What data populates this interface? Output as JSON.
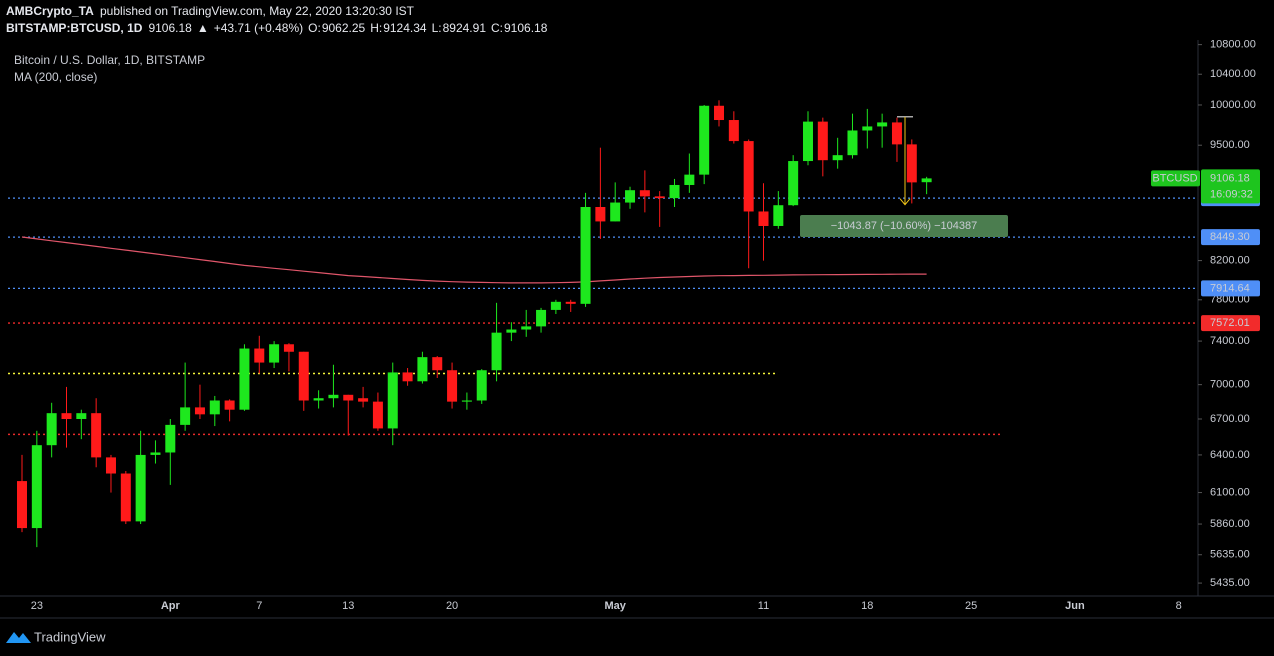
{
  "header": {
    "author": "AMBCrypto_TA",
    "published": "published on TradingView.com, May 22, 2020 13:20:30 IST",
    "symbol": "BITSTAMP:BTCUSD, 1D",
    "last": "9106.18",
    "arrow": "▲",
    "change": "+43.71 (+0.48%)",
    "ohlc": [
      {
        "label": "O:",
        "value": "9062.25"
      },
      {
        "label": "H:",
        "value": "9124.34"
      },
      {
        "label": "L:",
        "value": "8924.91"
      },
      {
        "label": "C:",
        "value": "9106.18"
      }
    ]
  },
  "footer": "TradingView",
  "chart_data": {
    "type": "candlestick",
    "title": "Bitcoin / U.S. Dollar, 1D, BITSTAMP",
    "log_scale": true,
    "grid": false,
    "up_color": "#1ee81e",
    "down_color": "#ff1a1a",
    "ylim": [
      5353,
      10864
    ],
    "yticks": [
      {
        "value": 10800,
        "label": "10800.00"
      },
      {
        "value": 10400,
        "label": "10400.00"
      },
      {
        "value": 10000,
        "label": "10000.00"
      },
      {
        "value": 9500,
        "label": "9500.00"
      },
      {
        "value": 8200,
        "label": "8200.00"
      },
      {
        "value": 7800,
        "label": "7800.00"
      },
      {
        "value": 7400,
        "label": "7400.00"
      },
      {
        "value": 7000,
        "label": "7000.00"
      },
      {
        "value": 6700,
        "label": "6700.00"
      },
      {
        "value": 6400,
        "label": "6400.00"
      },
      {
        "value": 6100,
        "label": "6100.00"
      },
      {
        "value": 5860,
        "label": "5860.00"
      },
      {
        "value": 5635,
        "label": "5635.00"
      },
      {
        "value": 5435,
        "label": "5435.00"
      }
    ],
    "categories": [
      null,
      "23",
      null,
      null,
      null,
      null,
      null,
      null,
      null,
      null,
      "Apr",
      null,
      null,
      null,
      null,
      null,
      "7",
      null,
      null,
      null,
      null,
      null,
      "13",
      null,
      null,
      null,
      null,
      null,
      null,
      "20",
      null,
      null,
      null,
      null,
      null,
      null,
      null,
      null,
      null,
      null,
      "May",
      null,
      null,
      null,
      null,
      null,
      null,
      null,
      null,
      null,
      "11",
      null,
      null,
      null,
      null,
      null,
      null,
      "18",
      null,
      null,
      null,
      null,
      null,
      null,
      "25",
      null,
      null,
      null,
      null,
      null,
      null,
      "Jun",
      null,
      null,
      null,
      null,
      null,
      null,
      "8",
      null
    ],
    "open": [
      6190,
      5830,
      6480,
      6750,
      6700,
      6750,
      6380,
      6250,
      5880,
      6400,
      6420,
      6650,
      6800,
      6740,
      6860,
      6780,
      7330,
      7200,
      7370,
      7300,
      6860,
      6880,
      6910,
      6880,
      6850,
      6620,
      7110,
      7030,
      7250,
      7130,
      6850,
      6860,
      7130,
      7480,
      7510,
      7540,
      7700,
      7780,
      7760,
      8780,
      8620,
      8830,
      8970,
      8900,
      8880,
      9030,
      9150,
      9990,
      9810,
      9550,
      8730,
      8570,
      8800,
      9310,
      9790,
      9320,
      9380,
      9680,
      9730,
      9780,
      9510,
      9062.25,
      null,
      null,
      null,
      null,
      null,
      null,
      null,
      null,
      null,
      null,
      null,
      null,
      null,
      null,
      null,
      null,
      null,
      null
    ],
    "high": [
      6400,
      6600,
      6840,
      6980,
      6780,
      6880,
      6400,
      6270,
      6600,
      6520,
      6700,
      7200,
      7000,
      6900,
      6870,
      7370,
      7450,
      7400,
      7380,
      7300,
      6950,
      7180,
      6910,
      6980,
      6930,
      7200,
      7150,
      7300,
      7260,
      7200,
      6930,
      7140,
      7770,
      7580,
      7700,
      7720,
      7800,
      7800,
      8940,
      9470,
      9060,
      9010,
      9200,
      8960,
      9100,
      9400,
      10000,
      10060,
      9920,
      9570,
      9050,
      8960,
      9380,
      9920,
      9840,
      9590,
      9890,
      9950,
      9890,
      9840,
      9570,
      9124.34,
      null,
      null,
      null,
      null,
      null,
      null,
      null,
      null,
      null,
      null,
      null,
      null,
      null,
      null,
      null,
      null,
      null,
      null
    ],
    "low": [
      5800,
      5690,
      6380,
      6460,
      6530,
      6300,
      6100,
      5860,
      5860,
      6330,
      6160,
      6600,
      6700,
      6640,
      6680,
      6770,
      7100,
      7150,
      7120,
      6770,
      6790,
      6800,
      6560,
      6800,
      6600,
      6480,
      6990,
      7010,
      7060,
      6790,
      6780,
      6830,
      7030,
      7400,
      7440,
      7480,
      7660,
      7680,
      7730,
      8430,
      8620,
      8760,
      8720,
      8560,
      8780,
      8940,
      9040,
      9730,
      9520,
      8120,
      8200,
      8540,
      8790,
      9260,
      9130,
      9220,
      9340,
      9460,
      9470,
      9300,
      8820,
      8924.91,
      null,
      null,
      null,
      null,
      null,
      null,
      null,
      null,
      null,
      null,
      null,
      null,
      null,
      null,
      null,
      null,
      null,
      null
    ],
    "close": [
      5830,
      6480,
      6750,
      6700,
      6750,
      6380,
      6250,
      5880,
      6400,
      6420,
      6650,
      6800,
      6740,
      6860,
      6780,
      7330,
      7200,
      7370,
      7300,
      6860,
      6880,
      6910,
      6860,
      6850,
      6620,
      7110,
      7030,
      7250,
      7130,
      6850,
      6860,
      7130,
      7480,
      7510,
      7540,
      7700,
      7780,
      7760,
      8780,
      8620,
      8830,
      8970,
      8900,
      8880,
      9030,
      9150,
      9990,
      9810,
      9550,
      8730,
      8570,
      8800,
      9310,
      9790,
      9320,
      9380,
      9680,
      9730,
      9780,
      9510,
      9060,
      9106.18,
      null,
      null,
      null,
      null,
      null,
      null,
      null,
      null,
      null,
      null,
      null,
      null,
      null,
      null,
      null,
      null,
      null,
      null
    ],
    "ma": {
      "name": "MA (200, close)",
      "color": "#e0566a",
      "values": [
        8450,
        8430,
        8410,
        8390,
        8370,
        8350,
        8330,
        8310,
        8290,
        8270,
        8250,
        8230,
        8210,
        8190,
        8170,
        8150,
        8135,
        8120,
        8105,
        8090,
        8075,
        8060,
        8045,
        8035,
        8025,
        8015,
        8005,
        7995,
        7988,
        7982,
        7978,
        7975,
        7972,
        7970,
        7970,
        7970,
        7972,
        7975,
        7980,
        7990,
        8000,
        8010,
        8018,
        8025,
        8030,
        8035,
        8040,
        8043,
        8045,
        8047,
        8048,
        8050,
        8052,
        8053,
        8054,
        8055,
        8056,
        8057,
        8058,
        8059,
        8060,
        8060,
        null,
        null,
        null,
        null,
        null,
        null,
        null,
        null,
        null,
        null,
        null,
        null,
        null,
        null,
        null,
        null,
        null,
        null
      ]
    },
    "price_lines": [
      {
        "value": 8879.78,
        "color": "#4f8ff7"
      },
      {
        "value": 8449.3,
        "label": "8449.30",
        "color": "#4f8ff7"
      },
      {
        "value": 7914.64,
        "color": "#4f8ff7"
      },
      {
        "value": 7572.01,
        "color": "#f22b2b"
      }
    ],
    "trend_lines": [
      {
        "value": 7100,
        "color": "#f5f53a"
      },
      {
        "value": 6570,
        "color": "#e82a2a"
      }
    ],
    "last_price": {
      "name": "BTCUSD",
      "countdown": "16:09:32",
      "color": "#1ec51e"
    },
    "measure": {
      "from": 9850,
      "to": 8806,
      "label": "−1043.87 (−10.60%) −104387",
      "color": "#4b7d4f"
    }
  }
}
